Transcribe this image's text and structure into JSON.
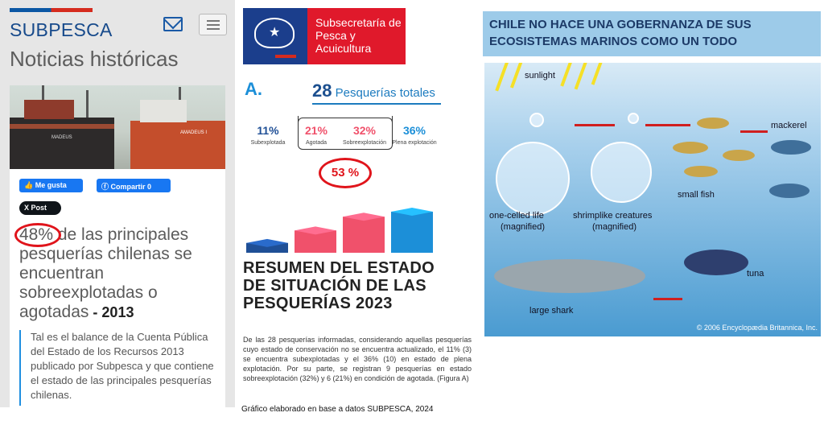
{
  "panel1": {
    "brand": "SUBPESCA",
    "heading": "Noticias históricas",
    "like_label": "Me gusta",
    "share_label": "Compartir 0",
    "post_label": "X Post",
    "headline_pct": "48%",
    "headline_rest": " de las principales pesquerías chilenas se encuentran sobreexplotadas o agotadas",
    "headline_sep": " - ",
    "headline_year": "2013",
    "quote": "Tal es el balance de la Cuenta Pública del Estado de los Recursos 2013 publicado por Subpesca y que contiene el estado de las principales pesquerías chilenas.",
    "photo_text_1": "MADEUS",
    "photo_text_2": "AMADEUS I"
  },
  "panel2": {
    "org_name": "Subsecretaría de Pesca y Acuicultura",
    "section": "A.",
    "total_number": "28",
    "total_label": "Pesquerías totales",
    "highlight": "53 %",
    "title": "RESUMEN DEL ESTADO DE SITUACIÓN DE LAS PESQUERÍAS 2023",
    "body": "De las 28 pesquerías informadas, considerando aquellas pesquerías cuyo estado de conservación no se encuentra actualizado, el 11% (3) se encuentra subexplotadas y el 36% (10) en estado de plena explotación. Por su parte, se registran 9 pesquerías en estado sobreexplotación (32%) y 6 (21%) en condición de agotada. (Figura A)",
    "caption": "Gráfico elaborado en base a datos SUBPESCA, 2024",
    "colors": {
      "sub": "#1f4f96",
      "ago": "#f0516b",
      "sobre": "#f0516b",
      "plena": "#1c8fd8"
    }
  },
  "chart_data": {
    "type": "bar",
    "categories": [
      "Subexplotada",
      "Agotada",
      "Sobreexplotación",
      "Plena explotación"
    ],
    "values": [
      11,
      21,
      32,
      36
    ],
    "value_labels": [
      "11%",
      "21%",
      "32%",
      "36%"
    ],
    "colors": [
      "#1f4f96",
      "#f0516b",
      "#f0516b",
      "#1c8fd8"
    ],
    "title": "",
    "xlabel": "",
    "ylabel": ""
  },
  "panel3": {
    "banner": "CHILE NO HACE UNA GOBERNANZA DE SUS ECOSISTEMAS MARINOS COMO UN TODO",
    "labels": {
      "sunlight": "sunlight",
      "mackerel": "mackerel",
      "small_fish": "small fish",
      "one_celled": "one-celled life",
      "one_celled_sub": "(magnified)",
      "shrimplike": "shrimplike creatures",
      "shrimplike_sub": "(magnified)",
      "tuna": "tuna",
      "large_shark": "large shark"
    },
    "copyright": "© 2006 Encyclopædia Britannica, Inc."
  }
}
